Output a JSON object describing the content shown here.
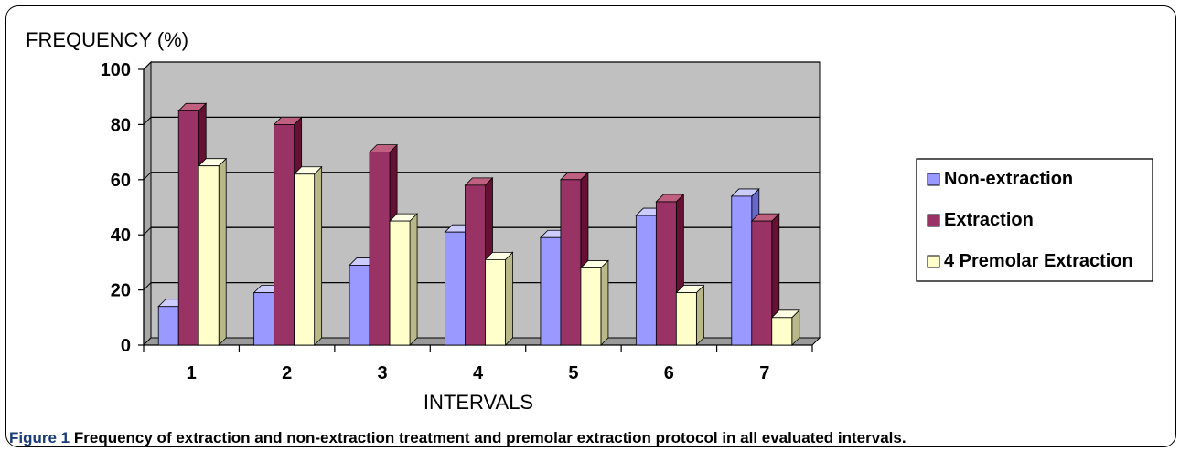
{
  "caption": {
    "label": "Figure 1",
    "text": "Frequency of extraction and non-extraction treatment and  premolar extraction protocol in all evaluated intervals."
  },
  "chart_data": {
    "type": "bar",
    "title": "",
    "ylabel": "FREQUENCY (%)",
    "xlabel": "INTERVALS",
    "ylim": [
      0,
      100
    ],
    "yticks": [
      0,
      20,
      40,
      60,
      80,
      100
    ],
    "grid": true,
    "legend_position": "right",
    "categories": [
      "1",
      "2",
      "3",
      "4",
      "5",
      "6",
      "7"
    ],
    "series": [
      {
        "name": "Non-extraction",
        "values": [
          14,
          19,
          29,
          41,
          39,
          47,
          54
        ],
        "color": "#9999ff",
        "side": "#6666cc",
        "topc": "#ccccff"
      },
      {
        "name": "Extraction",
        "values": [
          85,
          80,
          70,
          58,
          60,
          52,
          45
        ],
        "color": "#993366",
        "side": "#661133",
        "topc": "#c06080"
      },
      {
        "name": "4 Premolar Extraction",
        "values": [
          65,
          62,
          45,
          31,
          28,
          19,
          10
        ],
        "color": "#ffffcc",
        "side": "#b8b888",
        "topc": "#ffffe6"
      }
    ]
  }
}
